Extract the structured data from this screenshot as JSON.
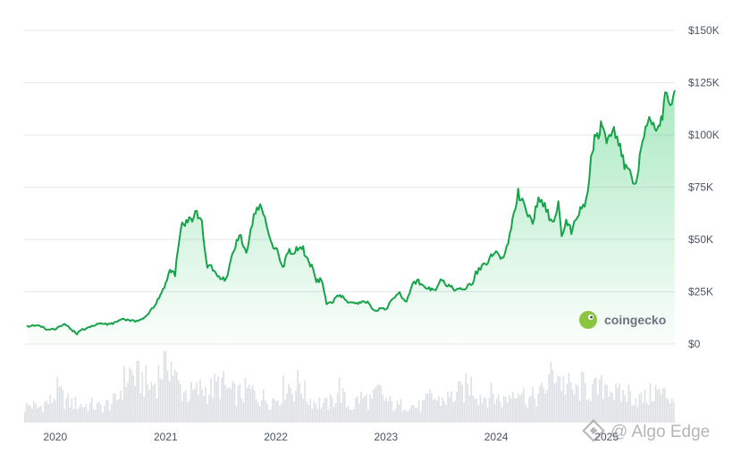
{
  "chart_data": {
    "type": "area",
    "title": "",
    "xlabel": "",
    "ylabel": "",
    "x_ticks": [
      "2020",
      "2021",
      "2022",
      "2023",
      "2024",
      "2025"
    ],
    "y_ticks": [
      "$0",
      "$25K",
      "$50K",
      "$75K",
      "$100K",
      "$125K",
      "$150K"
    ],
    "ylim": [
      0,
      150000
    ],
    "xlim": [
      "2019-09-20",
      "2025-08-15"
    ],
    "grid": true,
    "series": [
      {
        "values_x": [
          "2019-10-01",
          "2019-11-01",
          "2019-12-01",
          "2020-01-01",
          "2020-02-01",
          "2020-03-13",
          "2020-04-01",
          "2020-05-01",
          "2020-06-01",
          "2020-07-01",
          "2020-08-01",
          "2020-09-01",
          "2020-10-01",
          "2020-11-01",
          "2020-12-01",
          "2021-01-01",
          "2021-01-15",
          "2021-02-01",
          "2021-02-20",
          "2021-03-15",
          "2021-04-14",
          "2021-05-01",
          "2021-05-19",
          "2021-06-01",
          "2021-06-22",
          "2021-07-20",
          "2021-08-15",
          "2021-09-07",
          "2021-09-25",
          "2021-10-20",
          "2021-11-10",
          "2021-12-01",
          "2021-12-20",
          "2022-01-01",
          "2022-01-24",
          "2022-02-10",
          "2022-03-01",
          "2022-03-28",
          "2022-04-15",
          "2022-05-05",
          "2022-05-15",
          "2022-06-01",
          "2022-06-18",
          "2022-07-01",
          "2022-08-01",
          "2022-09-01",
          "2022-10-01",
          "2022-11-01",
          "2022-11-21",
          "2022-12-15",
          "2023-01-01",
          "2023-01-20",
          "2023-02-15",
          "2023-03-10",
          "2023-03-25",
          "2023-04-14",
          "2023-05-15",
          "2023-06-15",
          "2023-07-01",
          "2023-08-20",
          "2023-09-15",
          "2023-10-15",
          "2023-10-25",
          "2023-11-15",
          "2023-12-15",
          "2024-01-01",
          "2024-01-25",
          "2024-02-15",
          "2024-03-14",
          "2024-04-15",
          "2024-05-01",
          "2024-05-20",
          "2024-06-15",
          "2024-07-05",
          "2024-07-25",
          "2024-08-05",
          "2024-08-20",
          "2024-09-06",
          "2024-10-01",
          "2024-10-25",
          "2024-11-10",
          "2024-11-22",
          "2024-12-05",
          "2024-12-17",
          "2025-01-01",
          "2025-01-20",
          "2025-02-10",
          "2025-03-01",
          "2025-03-15",
          "2025-04-08",
          "2025-04-25",
          "2025-05-10",
          "2025-05-22",
          "2025-06-10",
          "2025-06-22",
          "2025-07-05",
          "2025-07-14",
          "2025-07-25",
          "2025-08-05",
          "2025-08-14"
        ],
        "values_y": [
          8300,
          9200,
          7200,
          7200,
          9400,
          5000,
          6800,
          8900,
          9500,
          9200,
          11800,
          11600,
          10800,
          13800,
          19500,
          29000,
          36000,
          33500,
          56000,
          58000,
          63000,
          57000,
          37000,
          36500,
          32000,
          31000,
          46000,
          52000,
          43000,
          62000,
          67000,
          57000,
          47000,
          47000,
          36500,
          44000,
          44000,
          47000,
          40000,
          36000,
          29800,
          31000,
          19000,
          19500,
          23500,
          20000,
          19500,
          20500,
          16000,
          16800,
          16600,
          21000,
          24000,
          20000,
          27500,
          30300,
          27000,
          25500,
          30200,
          26000,
          26500,
          29000,
          34000,
          36500,
          42000,
          44500,
          40000,
          52000,
          72000,
          63000,
          58000,
          70000,
          65000,
          57000,
          67000,
          53000,
          59000,
          54000,
          63000,
          68000,
          88000,
          98000,
          100000,
          106000,
          94000,
          104000,
          97000,
          85000,
          82000,
          76000,
          94000,
          104000,
          111000,
          101000,
          104000,
          108000,
          122000,
          117000,
          114000,
          121000
        ]
      }
    ],
    "volume": {
      "x_range": [
        "2019-09-20",
        "2025-08-15"
      ],
      "relative_levels": [
        0.22,
        0.25,
        0.2,
        0.27,
        0.3,
        0.45,
        0.32,
        0.28,
        0.26,
        0.24,
        0.25,
        0.22,
        0.23,
        0.27,
        0.3,
        0.55,
        0.7,
        0.62,
        0.6,
        0.5,
        0.58,
        0.8,
        0.95,
        0.6,
        0.45,
        0.4,
        0.42,
        0.48,
        0.44,
        0.5,
        0.55,
        0.45,
        0.4,
        0.4,
        0.45,
        0.42,
        0.35,
        0.33,
        0.32,
        0.4,
        0.55,
        0.45,
        0.58,
        0.35,
        0.3,
        0.28,
        0.25,
        0.3,
        0.5,
        0.26,
        0.22,
        0.35,
        0.33,
        0.3,
        0.45,
        0.32,
        0.25,
        0.22,
        0.28,
        0.24,
        0.22,
        0.26,
        0.38,
        0.3,
        0.33,
        0.35,
        0.4,
        0.45,
        0.55,
        0.42,
        0.36,
        0.4,
        0.35,
        0.3,
        0.38,
        0.55,
        0.4,
        0.33,
        0.36,
        0.42,
        0.6,
        0.75,
        0.55,
        0.5,
        0.4,
        0.52,
        0.46,
        0.45,
        0.48,
        0.58,
        0.4,
        0.38,
        0.42,
        0.36,
        0.33,
        0.34,
        0.45,
        0.4,
        0.38,
        0.35
      ]
    }
  },
  "branding": {
    "logo_text": "coingecko",
    "watermark_text": "@ Algo Edge"
  },
  "colors": {
    "line": "#16a34a",
    "fill_top": "#22c55e",
    "grid": "#e5e7eb",
    "volume": "#d1d5db",
    "logo_circle": "#8bc53f"
  }
}
